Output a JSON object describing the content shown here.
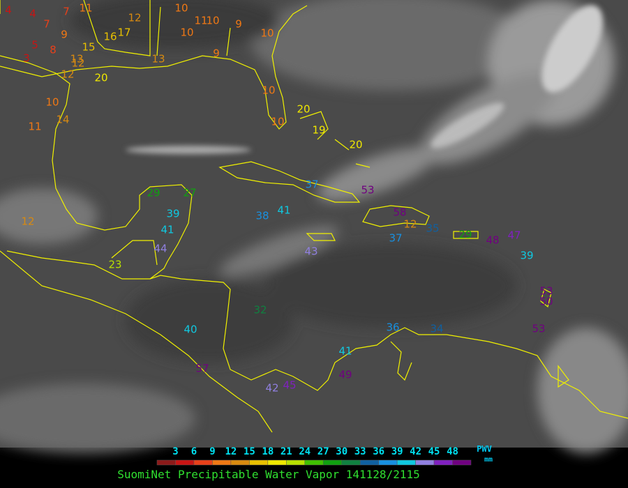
{
  "map": {
    "stations": [
      4,
      4,
      7,
      11,
      10,
      11,
      10,
      9,
      10,
      7,
      9,
      5,
      8,
      3,
      13,
      12,
      15,
      16,
      17,
      12,
      10,
      10,
      10,
      20,
      19,
      20,
      11,
      14,
      10,
      12,
      20,
      13,
      9,
      29,
      27,
      39,
      41,
      44,
      23,
      37,
      38,
      41,
      53,
      58,
      12,
      35,
      37,
      43,
      29,
      48,
      47,
      39,
      53,
      50,
      53,
      40,
      36,
      34,
      41,
      49,
      42,
      45,
      57,
      12,
      32
    ]
  },
  "legend": {
    "ticks": [
      3,
      6,
      9,
      12,
      15,
      18,
      21,
      24,
      27,
      30,
      33,
      36,
      39,
      42,
      45,
      48
    ],
    "colors": [
      "#8b1a1a",
      "#c81414",
      "#e8401a",
      "#f07814",
      "#d88a10",
      "#e8c000",
      "#f0e800",
      "#b8e000",
      "#40c000",
      "#10a010",
      "#108040",
      "#1060a0",
      "#1890e0",
      "#10c8e0",
      "#9080e0",
      "#8020c0",
      "#700080"
    ],
    "unit_top": "PWV",
    "unit_bottom": "mm"
  },
  "title": "SuomiNet Precipitable Water Vapor 141128/2115"
}
